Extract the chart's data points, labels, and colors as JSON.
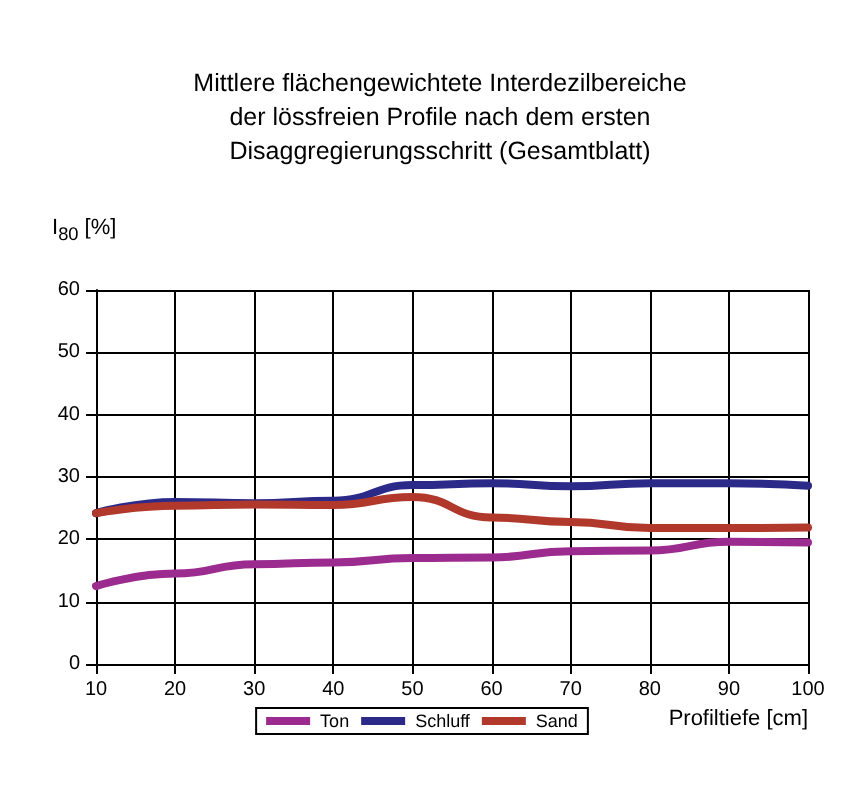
{
  "chart_data": {
    "type": "line",
    "title": "Mittlere flächengewichtete Interdezilbereiche\nder lössfreien Profile nach dem ersten\nDisaggregierungsschritt (Gesamtblatt)",
    "ylabel": "I$_{80}$ [%]",
    "xlabel": "Profiltiefe [cm]",
    "x": [
      10,
      20,
      30,
      40,
      50,
      60,
      70,
      80,
      90,
      100
    ],
    "series": [
      {
        "name": "Ton",
        "color": "#9b2b8e",
        "values": [
          12.5,
          14.5,
          16,
          16.3,
          17,
          17.1,
          18.1,
          18.2,
          19.6,
          19.5
        ]
      },
      {
        "name": "Schluff",
        "color": "#2b2a88",
        "values": [
          24.2,
          26,
          25.8,
          26.2,
          28.7,
          29,
          28.5,
          29,
          29,
          28.6
        ]
      },
      {
        "name": "Sand",
        "color": "#b0392c",
        "values": [
          24.2,
          25.4,
          25.6,
          25.5,
          26.8,
          23.5,
          22.8,
          21.8,
          21.8,
          21.9
        ]
      }
    ],
    "xlim": [
      10,
      100
    ],
    "xticks": [
      10,
      20,
      30,
      40,
      50,
      60,
      70,
      80,
      90,
      100
    ],
    "ylim": [
      0,
      60
    ],
    "yticks": [
      0,
      10,
      20,
      30,
      40,
      50,
      60
    ],
    "grid": true,
    "legend": "bottom",
    "marker": "none",
    "line_style": "solid"
  }
}
